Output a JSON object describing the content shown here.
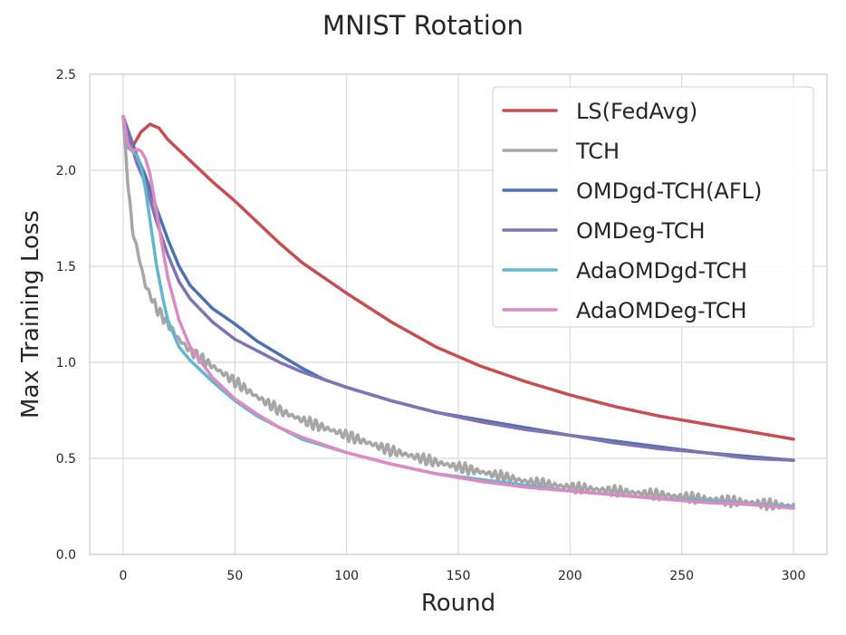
{
  "chart_data": {
    "type": "line",
    "title": "MNIST Rotation",
    "xlabel": "Round",
    "ylabel": "Max Training Loss",
    "xlim": [
      -15,
      315
    ],
    "ylim": [
      0.0,
      2.5
    ],
    "xticks": [
      0,
      50,
      100,
      150,
      200,
      250,
      300
    ],
    "xtick_labels": [
      "0",
      "50",
      "100",
      "150",
      "200",
      "250",
      "300"
    ],
    "yticks": [
      0.0,
      0.5,
      1.0,
      1.5,
      2.0,
      2.5
    ],
    "ytick_labels": [
      "0.0",
      "0.5",
      "1.0",
      "1.5",
      "2.0",
      "2.5"
    ],
    "grid": true,
    "legend_position": "top-right",
    "series": [
      {
        "name": "LS(FedAvg)",
        "color": "#c44e52",
        "x": [
          0,
          4,
          8,
          12,
          16,
          20,
          30,
          40,
          50,
          60,
          70,
          80,
          90,
          100,
          120,
          140,
          160,
          180,
          200,
          220,
          240,
          260,
          280,
          300
        ],
        "y": [
          2.28,
          2.12,
          2.2,
          2.24,
          2.22,
          2.16,
          2.05,
          1.94,
          1.84,
          1.73,
          1.62,
          1.52,
          1.44,
          1.36,
          1.21,
          1.08,
          0.98,
          0.9,
          0.83,
          0.77,
          0.72,
          0.68,
          0.64,
          0.6
        ]
      },
      {
        "name": "TCH",
        "color": "#a6a6a6",
        "x": [
          0,
          2,
          4,
          6,
          8,
          10,
          15,
          20,
          25,
          30,
          40,
          50,
          60,
          70,
          80,
          100,
          120,
          140,
          160,
          180,
          200,
          220,
          240,
          260,
          280,
          300
        ],
        "y": [
          2.28,
          1.95,
          1.7,
          1.6,
          1.5,
          1.4,
          1.28,
          1.2,
          1.12,
          1.06,
          0.98,
          0.9,
          0.82,
          0.75,
          0.7,
          0.62,
          0.54,
          0.48,
          0.43,
          0.38,
          0.35,
          0.33,
          0.31,
          0.29,
          0.27,
          0.25
        ],
        "oscillation": 0.03
      },
      {
        "name": "OMDgd-TCH(AFL)",
        "color": "#4c72b0",
        "x": [
          0,
          3,
          6,
          10,
          15,
          20,
          25,
          30,
          40,
          50,
          60,
          70,
          80,
          90,
          100,
          120,
          140,
          160,
          180,
          200,
          220,
          240,
          260,
          280,
          300
        ],
        "y": [
          2.28,
          2.18,
          2.08,
          1.97,
          1.8,
          1.64,
          1.5,
          1.4,
          1.28,
          1.2,
          1.11,
          1.04,
          0.97,
          0.91,
          0.87,
          0.8,
          0.74,
          0.7,
          0.66,
          0.62,
          0.59,
          0.56,
          0.53,
          0.51,
          0.49
        ]
      },
      {
        "name": "OMDeg-TCH",
        "color": "#8172b2",
        "x": [
          0,
          3,
          6,
          10,
          15,
          20,
          25,
          30,
          40,
          50,
          60,
          70,
          80,
          90,
          100,
          120,
          140,
          160,
          180,
          200,
          220,
          240,
          260,
          280,
          300
        ],
        "y": [
          2.28,
          2.16,
          2.04,
          1.93,
          1.73,
          1.56,
          1.42,
          1.33,
          1.21,
          1.12,
          1.06,
          1.0,
          0.95,
          0.91,
          0.87,
          0.8,
          0.74,
          0.69,
          0.65,
          0.62,
          0.58,
          0.55,
          0.53,
          0.5,
          0.49
        ]
      },
      {
        "name": "AdaOMDgd-TCH",
        "color": "#64b5cd",
        "x": [
          0,
          2,
          4,
          6,
          8,
          10,
          12,
          15,
          18,
          20,
          25,
          30,
          40,
          50,
          60,
          70,
          80,
          100,
          120,
          140,
          160,
          180,
          200,
          220,
          240,
          260,
          280,
          300
        ],
        "y": [
          2.28,
          2.12,
          2.1,
          2.08,
          2.02,
          1.9,
          1.74,
          1.5,
          1.32,
          1.22,
          1.08,
          1.01,
          0.9,
          0.8,
          0.72,
          0.66,
          0.6,
          0.53,
          0.47,
          0.42,
          0.39,
          0.36,
          0.33,
          0.31,
          0.29,
          0.28,
          0.26,
          0.25
        ]
      },
      {
        "name": "AdaOMDeg-TCH",
        "color": "#da8bc3",
        "x": [
          0,
          2,
          4,
          6,
          8,
          10,
          12,
          15,
          18,
          20,
          25,
          30,
          40,
          50,
          60,
          70,
          80,
          100,
          120,
          140,
          160,
          180,
          200,
          220,
          240,
          260,
          280,
          300
        ],
        "y": [
          2.28,
          2.14,
          2.1,
          2.11,
          2.1,
          2.06,
          1.98,
          1.78,
          1.57,
          1.44,
          1.22,
          1.08,
          0.92,
          0.81,
          0.73,
          0.66,
          0.61,
          0.53,
          0.47,
          0.42,
          0.38,
          0.35,
          0.33,
          0.31,
          0.29,
          0.27,
          0.26,
          0.24
        ]
      }
    ]
  }
}
